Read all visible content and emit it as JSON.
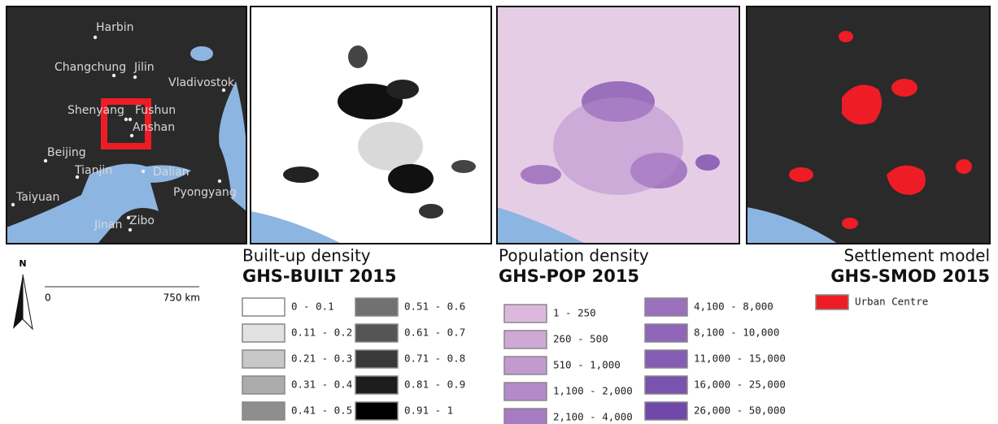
{
  "overview_map": {
    "cities": [
      "Harbin",
      "Changchung",
      "Jilin",
      "Vladivostok",
      "Shenyang",
      "Fushun",
      "Anshan",
      "Beijing",
      "Tianjin",
      "Dalian",
      "Pyongyang",
      "Taiyuan",
      "Jinan",
      "Zibo"
    ],
    "north_label": "N",
    "scale_start": "0",
    "scale_end": "750 km"
  },
  "panels": [
    {
      "title": "Built-up density",
      "subtitle": "GHS-BUILT 2015",
      "legend": [
        {
          "label": "0 - 0.1",
          "color": "#ffffff"
        },
        {
          "label": "0.11 - 0.2",
          "color": "#e2e2e2"
        },
        {
          "label": "0.21 - 0.3",
          "color": "#c8c8c8"
        },
        {
          "label": "0.31 - 0.4",
          "color": "#ababab"
        },
        {
          "label": "0.41 - 0.5",
          "color": "#8e8e8e"
        },
        {
          "label": "0.51 - 0.6",
          "color": "#717171"
        },
        {
          "label": "0.61 - 0.7",
          "color": "#555555"
        },
        {
          "label": "0.71 - 0.8",
          "color": "#393939"
        },
        {
          "label": "0.81 - 0.9",
          "color": "#1d1d1d"
        },
        {
          "label": "0.91 - 1",
          "color": "#000000"
        }
      ]
    },
    {
      "title": "Population density",
      "subtitle": "GHS-POP 2015",
      "legend": [
        {
          "label": "1 - 250",
          "color": "#dcb9dc"
        },
        {
          "label": "260 - 500",
          "color": "#cfa9d6"
        },
        {
          "label": "510 - 1,000",
          "color": "#c29ad0"
        },
        {
          "label": "1,100 - 2,000",
          "color": "#b48ac9"
        },
        {
          "label": "2,100 - 4,000",
          "color": "#a77bc2"
        },
        {
          "label": "4,100 - 8,000",
          "color": "#9b70bd"
        },
        {
          "label": "8,100 - 10,000",
          "color": "#9066b9"
        },
        {
          "label": "11,000 - 15,000",
          "color": "#855cb4"
        },
        {
          "label": "16,000 - 25,000",
          "color": "#7a52af"
        },
        {
          "label": "26,000 - 50,000",
          "color": "#6f48aa"
        }
      ]
    },
    {
      "title": "Settlement model",
      "subtitle": "GHS-SMOD 2015",
      "legend": [
        {
          "label": "Urban Centre",
          "color": "#ee1c25"
        }
      ]
    }
  ]
}
